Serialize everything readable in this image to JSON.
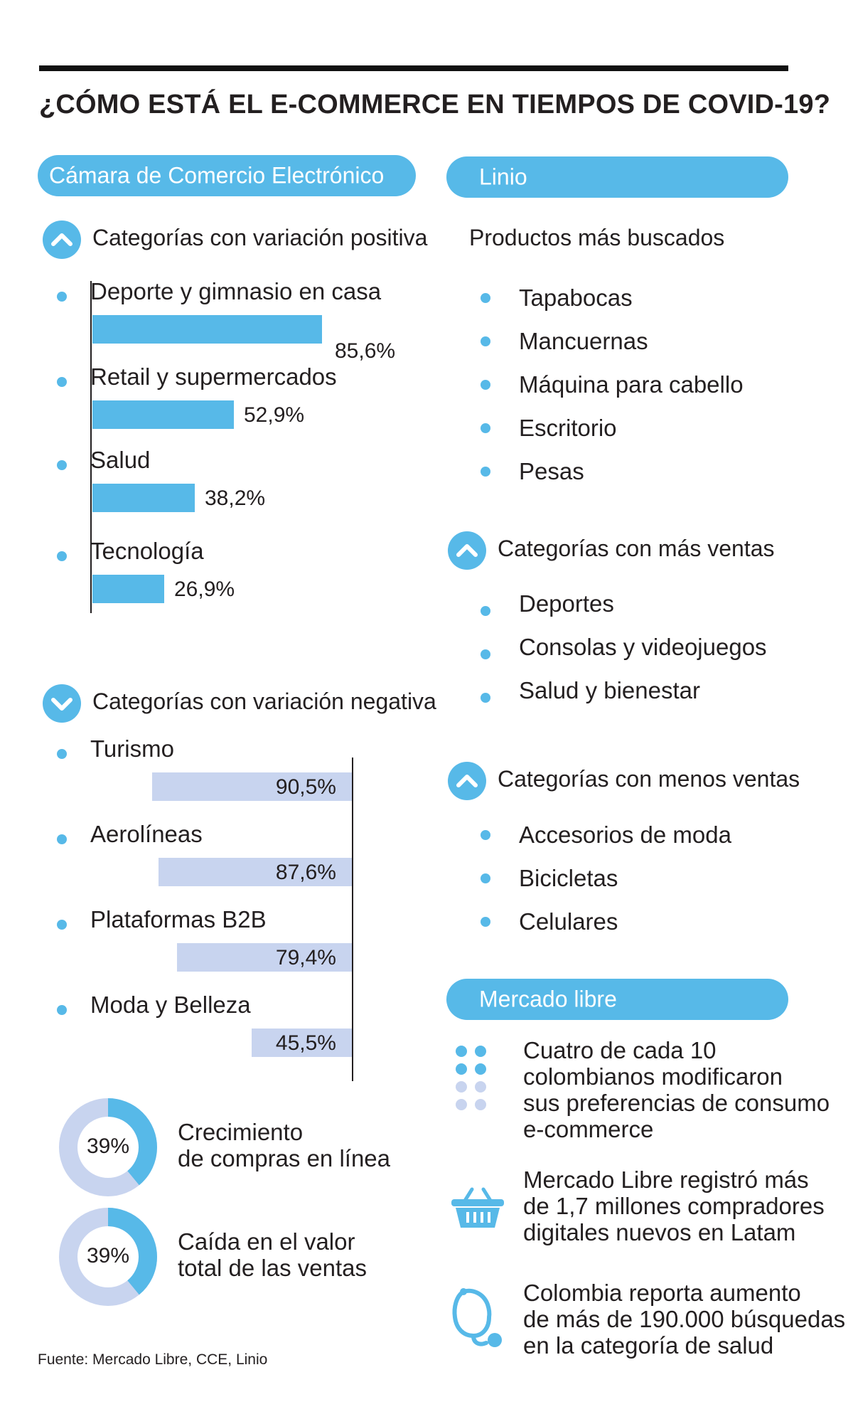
{
  "title": "¿CÓMO ESTÁ EL E-COMMERCE EN TIEMPOS DE COVID-19?",
  "colors": {
    "accent": "#57b9e8",
    "negative_bar": "#c8d4ef",
    "text": "#231f20"
  },
  "left": {
    "header": "Cámara de Comercio Electrónico",
    "positive": {
      "heading": "Categorías con variación positiva",
      "icon": "chevron-up-icon",
      "items": [
        {
          "label": "Deporte y gimnasio en casa",
          "value": 85.6,
          "value_label": "85,6%"
        },
        {
          "label": "Retail y supermercados",
          "value": 52.9,
          "value_label": "52,9%"
        },
        {
          "label": "Salud",
          "value": 38.2,
          "value_label": "38,2%"
        },
        {
          "label": "Tecnología",
          "value": 26.9,
          "value_label": "26,9%"
        }
      ]
    },
    "negative": {
      "heading": "Categorías con variación negativa",
      "icon": "chevron-down-icon",
      "items": [
        {
          "label": "Turismo",
          "value": 90.5,
          "value_label": "90,5%"
        },
        {
          "label": "Aerolíneas",
          "value": 87.6,
          "value_label": "87,6%"
        },
        {
          "label": "Plataformas B2B",
          "value": 79.4,
          "value_label": "79,4%"
        },
        {
          "label": "Moda y Belleza",
          "value": 45.5,
          "value_label": "45,5%"
        }
      ]
    },
    "donuts": [
      {
        "value": 39,
        "value_label": "39%",
        "line1": "Crecimiento",
        "line2": "de compras en línea"
      },
      {
        "value": 39,
        "value_label": "39%",
        "line1": "Caída en el valor",
        "line2": "total de las ventas"
      }
    ],
    "source": "Fuente: Mercado Libre, CCE, Linio"
  },
  "right": {
    "linio": {
      "header": "Linio",
      "searched_heading": "Productos más buscados",
      "searched": [
        "Tapabocas",
        "Mancuernas",
        "Máquina para cabello",
        "Escritorio",
        "Pesas"
      ],
      "most_heading": "Categorías con más ventas",
      "most": [
        "Deportes",
        "Consolas y videojuegos",
        "Salud y bienestar"
      ],
      "least_heading": "Categorías con menos ventas",
      "least": [
        "Accesorios de moda",
        "Bicicletas",
        "Celulares"
      ]
    },
    "mercado": {
      "header": "Mercado libre",
      "facts": [
        {
          "icon": "dot-grid-icon",
          "lines": [
            "Cuatro de cada 10",
            "colombianos modificaron",
            "sus preferencias de consumo",
            "e-commerce"
          ]
        },
        {
          "icon": "shopping-basket-icon",
          "lines": [
            "Mercado Libre registró más",
            "de 1,7 millones compradores",
            "digitales nuevos en Latam"
          ]
        },
        {
          "icon": "stethoscope-icon",
          "lines": [
            "Colombia reporta aumento",
            "de más de 190.000 búsquedas",
            "en la categoría de salud"
          ]
        }
      ]
    }
  }
}
